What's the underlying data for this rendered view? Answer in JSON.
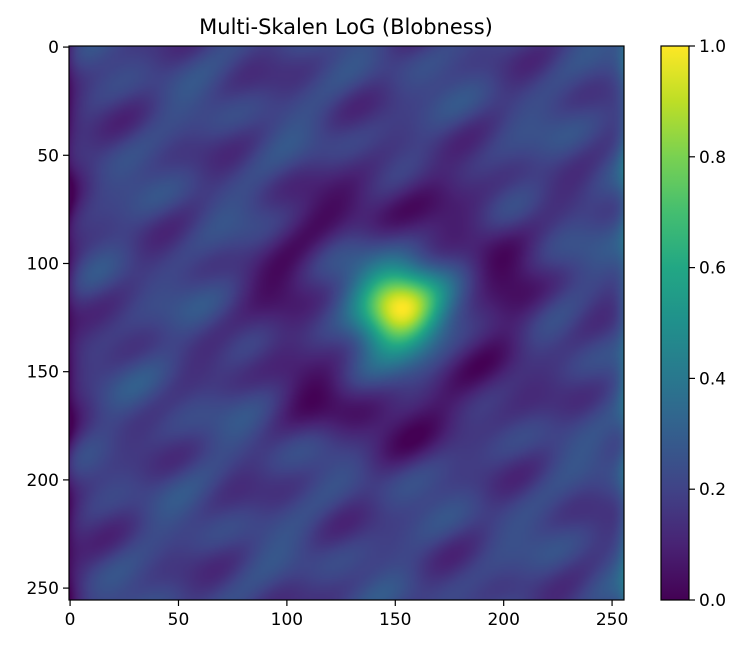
{
  "chart_data": {
    "type": "heatmap",
    "title": "Multi-Skalen LoG (Blobness)",
    "xlabel": "",
    "ylabel": "",
    "width": 256,
    "height": 256,
    "xlim": [
      0,
      256
    ],
    "ylim": [
      256,
      0
    ],
    "x_ticks": [
      "0",
      "50",
      "100",
      "150",
      "200",
      "250"
    ],
    "y_ticks": [
      "0",
      "50",
      "100",
      "150",
      "200",
      "250"
    ],
    "colormap": "viridis",
    "colorbar": {
      "vmin": 0.0,
      "vmax": 1.0,
      "ticks": [
        "0.0",
        "0.2",
        "0.4",
        "0.6",
        "0.8",
        "1.0"
      ]
    },
    "features": {
      "blob": {
        "center_x": 151,
        "center_y": 121,
        "peak_value": 1.0,
        "radius": 22
      },
      "dark_ring": {
        "center_x": 151,
        "center_y": 121,
        "value": 0.05,
        "radius": 52
      },
      "background_value": 0.2,
      "dark_edges": {
        "left_value": 0.05,
        "right_value": 0.35
      }
    },
    "grid": false
  }
}
